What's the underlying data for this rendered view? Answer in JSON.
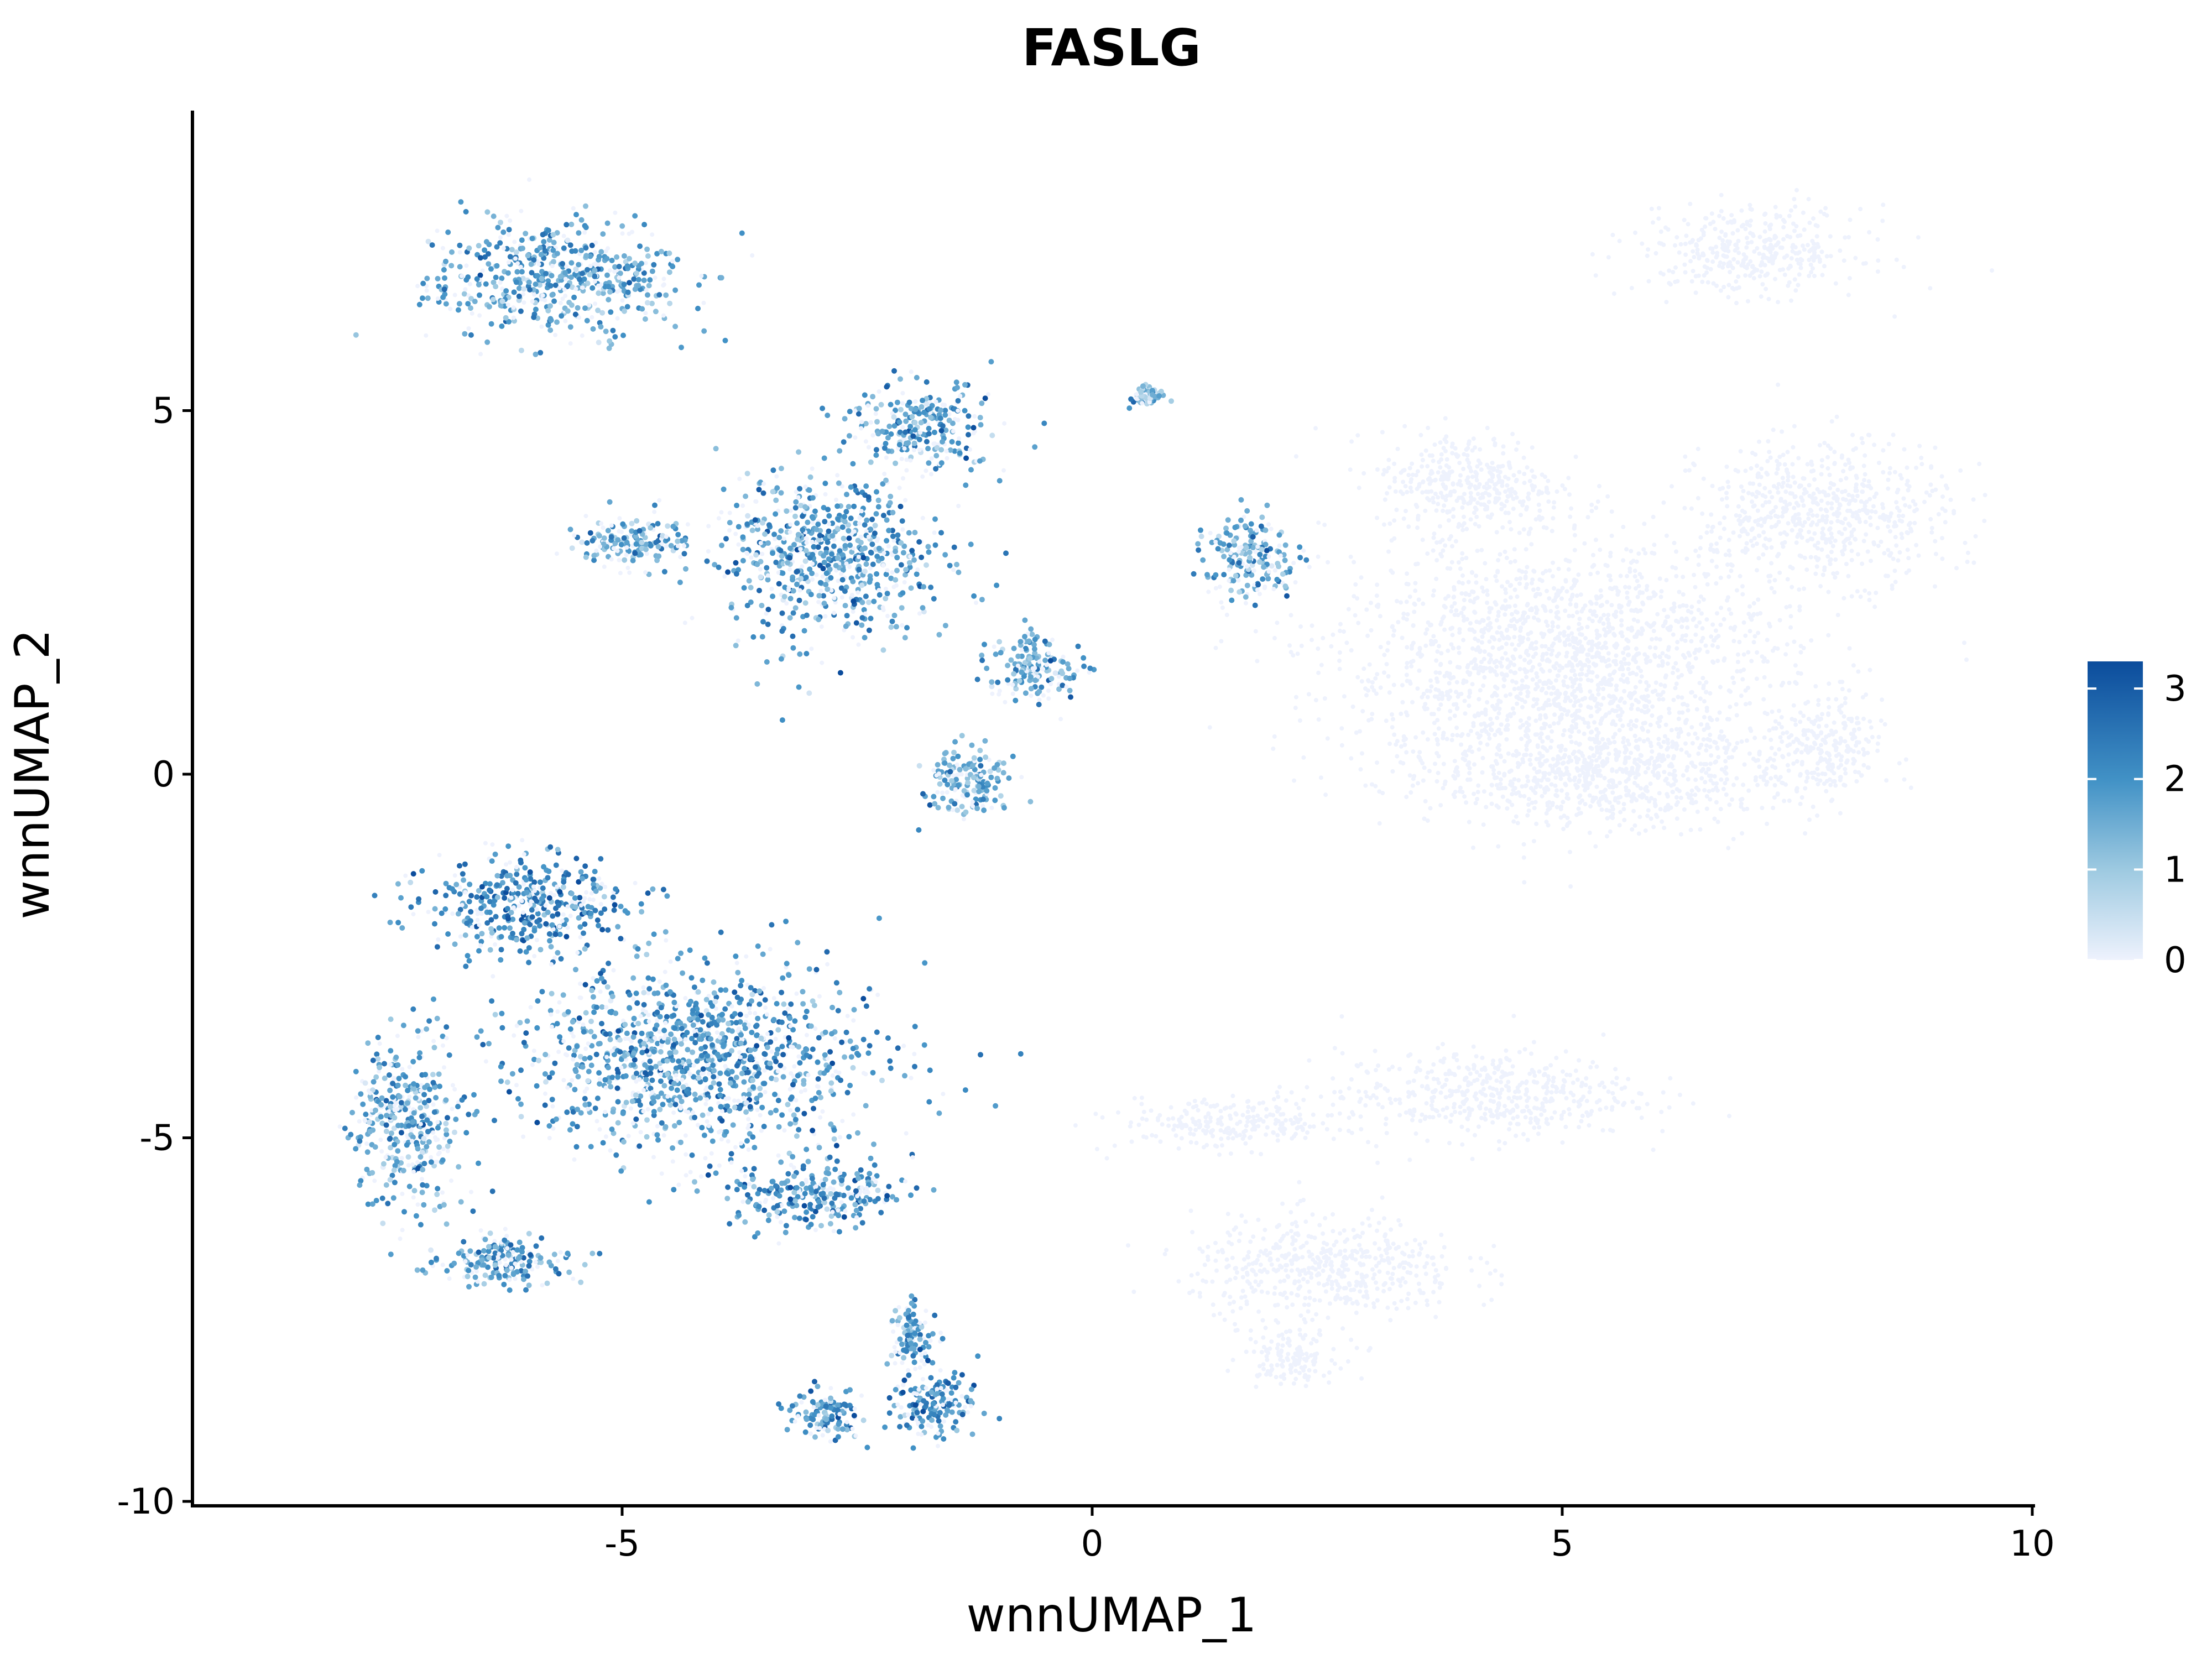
{
  "chart_data": {
    "type": "scatter",
    "title": "FASLG",
    "xlabel": "wnnUMAP_1",
    "ylabel": "wnnUMAP_2",
    "xlim": [
      -9.8,
      10
    ],
    "ylim": [
      -10,
      9
    ],
    "x_ticks": [
      -5,
      0,
      5,
      10
    ],
    "x_tick_labels": [
      "-5",
      "0",
      "5",
      "10"
    ],
    "y_ticks": [
      -10,
      -5,
      0,
      5
    ],
    "y_tick_labels": [
      "-10",
      "-5",
      "0",
      "5"
    ],
    "grid": false,
    "legend_position": "right",
    "color_scale": {
      "min": 0,
      "max": 3.3,
      "ticks": [
        0,
        1,
        2,
        3
      ],
      "tick_labels": [
        "0",
        "1",
        "2",
        "3"
      ],
      "low_color": "#eef2fd",
      "high_color": "#0b4c9c"
    },
    "clusters": [
      {
        "center": [
          -5.7,
          6.8
        ],
        "spread": [
          1.1,
          0.7
        ],
        "expression": 1.7
      },
      {
        "center": [
          -2.8,
          3.0
        ],
        "spread": [
          1.0,
          1.0
        ],
        "expression": 1.8
      },
      {
        "center": [
          -1.8,
          4.8
        ],
        "spread": [
          0.6,
          0.5
        ],
        "expression": 1.8
      },
      {
        "center": [
          -0.6,
          1.5
        ],
        "spread": [
          0.4,
          0.4
        ],
        "expression": 1.6
      },
      {
        "center": [
          -1.3,
          -0.1
        ],
        "spread": [
          0.4,
          0.4
        ],
        "expression": 1.5
      },
      {
        "center": [
          -4.9,
          3.2
        ],
        "spread": [
          0.5,
          0.3
        ],
        "expression": 1.6
      },
      {
        "center": [
          -6.0,
          -1.8
        ],
        "spread": [
          0.9,
          0.6
        ],
        "expression": 2.1
      },
      {
        "center": [
          -4.2,
          -3.9
        ],
        "spread": [
          1.6,
          1.1
        ],
        "expression": 1.9
      },
      {
        "center": [
          -3.0,
          -5.8
        ],
        "spread": [
          0.8,
          0.4
        ],
        "expression": 1.9
      },
      {
        "center": [
          -6.2,
          -6.7
        ],
        "spread": [
          0.6,
          0.3
        ],
        "expression": 1.8
      },
      {
        "center": [
          -7.3,
          -4.8
        ],
        "spread": [
          0.5,
          1.0
        ],
        "expression": 1.7
      },
      {
        "center": [
          -1.7,
          -8.7
        ],
        "spread": [
          0.4,
          0.4
        ],
        "expression": 2.0
      },
      {
        "center": [
          -2.8,
          -8.8
        ],
        "spread": [
          0.3,
          0.3
        ],
        "expression": 2.0
      },
      {
        "center": [
          -1.9,
          -7.7
        ],
        "spread": [
          0.2,
          0.4
        ],
        "expression": 1.9
      },
      {
        "center": [
          1.7,
          3.0
        ],
        "spread": [
          0.4,
          0.5
        ],
        "expression": 1.6
      },
      {
        "center": [
          0.6,
          5.2
        ],
        "spread": [
          0.15,
          0.1
        ],
        "expression": 1.2
      },
      {
        "center": [
          7.0,
          7.2
        ],
        "spread": [
          1.0,
          0.5
        ],
        "expression": 0.0
      },
      {
        "center": [
          7.8,
          3.6
        ],
        "spread": [
          1.1,
          0.8
        ],
        "expression": 0.0
      },
      {
        "center": [
          5.0,
          1.5
        ],
        "spread": [
          2.0,
          1.5
        ],
        "expression": 0.0
      },
      {
        "center": [
          5.5,
          0.0
        ],
        "spread": [
          1.5,
          0.6
        ],
        "expression": 0.0
      },
      {
        "center": [
          7.8,
          0.3
        ],
        "spread": [
          0.5,
          0.6
        ],
        "expression": 0.0
      },
      {
        "center": [
          4.0,
          4.0
        ],
        "spread": [
          0.8,
          0.6
        ],
        "expression": 0.0
      },
      {
        "center": [
          4.2,
          -4.4
        ],
        "spread": [
          1.3,
          0.5
        ],
        "expression": 0.0
      },
      {
        "center": [
          2.5,
          -6.8
        ],
        "spread": [
          1.2,
          0.6
        ],
        "expression": 0.0
      },
      {
        "center": [
          2.1,
          -8.0
        ],
        "spread": [
          0.4,
          0.3
        ],
        "expression": 0.0
      },
      {
        "center": [
          1.5,
          -4.8
        ],
        "spread": [
          1.0,
          0.3
        ],
        "expression": 0.0
      }
    ]
  }
}
